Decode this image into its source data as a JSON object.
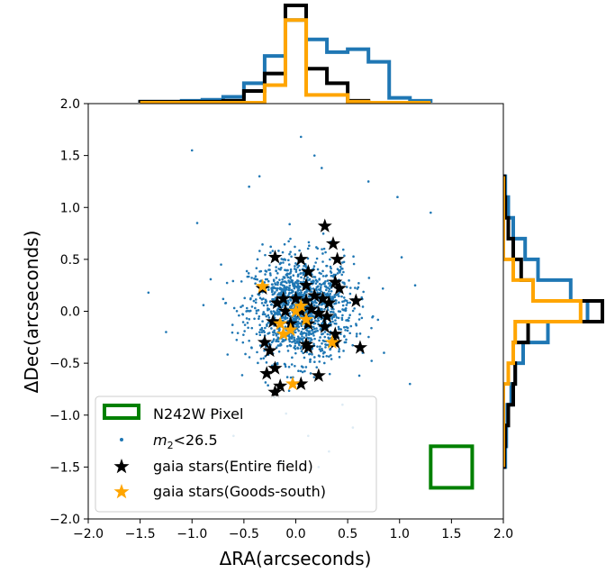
{
  "chart_data": {
    "type": "scatter",
    "xlabel": "ΔRA(arcseconds)",
    "ylabel": "ΔDec(arcseconds)",
    "xlim": [
      -2.0,
      2.0
    ],
    "ylim": [
      -2.0,
      2.0
    ],
    "xticks": [
      "−2.0",
      "−1.5",
      "−1.0",
      "−0.5",
      "0.0",
      "0.5",
      "1.0",
      "1.5",
      "2.0"
    ],
    "yticks": [
      "−2.0",
      "−1.5",
      "−1.0",
      "−0.5",
      "0.0",
      "0.5",
      "1.0",
      "1.5",
      "2.0"
    ],
    "grid": false,
    "legend_position": "lower-left",
    "colors": {
      "blue": "#1f77b4",
      "black": "#000000",
      "orange": "#ffa500",
      "green": "#008000"
    },
    "legend": [
      {
        "label": "N242W Pixel",
        "marker": "square-outline",
        "color": "#008000"
      },
      {
        "label_main": "m",
        "label_sub": "2",
        "label_rest": "<26.5",
        "marker": "dot",
        "color": "#1f77b4"
      },
      {
        "label": "gaia stars(Entire field)",
        "marker": "star",
        "color": "#000000"
      },
      {
        "label": "gaia stars(Goods-south)",
        "marker": "star",
        "color": "#ffa500"
      }
    ],
    "pixel_box": {
      "center": [
        1.5,
        -1.5
      ],
      "size": 0.4
    },
    "m2_points": {
      "count_core": 1400,
      "sigma": 0.25,
      "outliers": [
        [
          -1.0,
          1.55
        ],
        [
          0.05,
          1.68
        ],
        [
          -0.45,
          1.2
        ],
        [
          1.3,
          0.95
        ],
        [
          0.98,
          1.1
        ],
        [
          0.25,
          1.38
        ],
        [
          0.18,
          1.5
        ],
        [
          -0.72,
          0.45
        ],
        [
          -1.42,
          0.18
        ],
        [
          -1.25,
          -0.2
        ],
        [
          1.15,
          0.25
        ],
        [
          0.85,
          -0.4
        ],
        [
          1.02,
          0.52
        ],
        [
          -0.82,
          -1.0
        ],
        [
          0.55,
          -1.12
        ],
        [
          0.32,
          -1.35
        ],
        [
          0.12,
          -1.2
        ],
        [
          -0.15,
          -1.45
        ],
        [
          0.45,
          -0.9
        ],
        [
          -0.35,
          1.3
        ],
        [
          0.7,
          1.25
        ],
        [
          -0.95,
          0.85
        ],
        [
          1.1,
          -0.7
        ],
        [
          -0.6,
          -1.2
        ],
        [
          0.22,
          -1.5
        ]
      ]
    },
    "stars_entire_field": [
      [
        0.28,
        0.82
      ],
      [
        0.36,
        0.65
      ],
      [
        0.4,
        0.5
      ],
      [
        -0.2,
        0.52
      ],
      [
        0.05,
        0.5
      ],
      [
        0.12,
        0.38
      ],
      [
        -0.32,
        0.22
      ],
      [
        0.38,
        0.28
      ],
      [
        0.42,
        0.22
      ],
      [
        0.1,
        0.25
      ],
      [
        -0.12,
        0.12
      ],
      [
        -0.18,
        0.08
      ],
      [
        0.0,
        0.12
      ],
      [
        0.1,
        0.1
      ],
      [
        0.18,
        0.15
      ],
      [
        0.26,
        0.12
      ],
      [
        0.32,
        0.08
      ],
      [
        0.58,
        0.1
      ],
      [
        -0.1,
        0.0
      ],
      [
        0.05,
        0.0
      ],
      [
        0.15,
        0.02
      ],
      [
        0.22,
        -0.02
      ],
      [
        0.3,
        -0.05
      ],
      [
        -0.22,
        -0.1
      ],
      [
        -0.05,
        -0.12
      ],
      [
        0.12,
        -0.12
      ],
      [
        0.28,
        -0.15
      ],
      [
        0.38,
        -0.22
      ],
      [
        -0.3,
        -0.3
      ],
      [
        -0.25,
        -0.38
      ],
      [
        0.1,
        -0.32
      ],
      [
        0.12,
        -0.35
      ],
      [
        0.38,
        -0.3
      ],
      [
        0.62,
        -0.35
      ],
      [
        -0.2,
        -0.55
      ],
      [
        -0.28,
        -0.6
      ],
      [
        0.22,
        -0.62
      ],
      [
        -0.15,
        -0.72
      ],
      [
        -0.2,
        -0.78
      ],
      [
        0.05,
        -0.7
      ]
    ],
    "stars_goods_south": [
      [
        -0.32,
        0.24
      ],
      [
        -0.15,
        -0.12
      ],
      [
        -0.12,
        -0.22
      ],
      [
        0.0,
        0.0
      ],
      [
        0.1,
        -0.08
      ],
      [
        -0.05,
        -0.18
      ],
      [
        0.35,
        -0.3
      ],
      [
        -0.03,
        -0.7
      ],
      [
        0.05,
        0.05
      ]
    ],
    "hist_top": {
      "bin_edges": [
        -1.5,
        -1.3,
        -1.1,
        -0.9,
        -0.7,
        -0.5,
        -0.3,
        -0.1,
        0.1,
        0.3,
        0.5,
        0.7,
        0.9,
        1.1,
        1.3
      ],
      "blue": [
        0.01,
        0.01,
        0.02,
        0.03,
        0.06,
        0.2,
        0.48,
        0.85,
        0.65,
        0.52,
        0.55,
        0.42,
        0.05,
        0.02
      ],
      "black": [
        0.01,
        0.01,
        0.01,
        0.01,
        0.02,
        0.12,
        0.3,
        1.0,
        0.35,
        0.2,
        0.02,
        0.0,
        0.0,
        0.0
      ],
      "orange": [
        0.0,
        0.0,
        0.0,
        0.0,
        0.0,
        0.0,
        0.18,
        0.85,
        0.08,
        0.08,
        0.01,
        0.0,
        0.0,
        0.0
      ]
    },
    "hist_right": {
      "bin_edges": [
        -1.5,
        -1.3,
        -1.1,
        -0.9,
        -0.7,
        -0.5,
        -0.3,
        -0.1,
        0.1,
        0.3,
        0.5,
        0.7,
        0.9,
        1.1,
        1.3
      ],
      "blue": [
        0.02,
        0.03,
        0.04,
        0.08,
        0.12,
        0.2,
        0.45,
        0.85,
        0.68,
        0.35,
        0.22,
        0.1,
        0.05,
        0.02
      ],
      "black": [
        0.01,
        0.02,
        0.05,
        0.1,
        0.12,
        0.1,
        0.25,
        1.0,
        0.3,
        0.18,
        0.1,
        0.05,
        0.02,
        0.01
      ],
      "orange": [
        0.0,
        0.0,
        0.0,
        0.0,
        0.05,
        0.1,
        0.12,
        0.78,
        0.3,
        0.1,
        0.0,
        0.0,
        0.0,
        0.0
      ]
    }
  }
}
